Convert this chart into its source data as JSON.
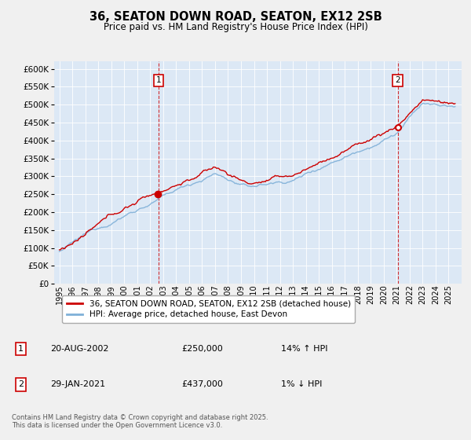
{
  "title": "36, SEATON DOWN ROAD, SEATON, EX12 2SB",
  "subtitle": "Price paid vs. HM Land Registry's House Price Index (HPI)",
  "ylim": [
    0,
    620000
  ],
  "yticks": [
    0,
    50000,
    100000,
    150000,
    200000,
    250000,
    300000,
    350000,
    400000,
    450000,
    500000,
    550000,
    600000
  ],
  "hpi_color": "#7fb0d8",
  "price_color": "#cc0000",
  "marker1_date": 2002.64,
  "marker1_price": 250000,
  "marker2_date": 2021.08,
  "marker2_price": 437000,
  "legend_line1": "36, SEATON DOWN ROAD, SEATON, EX12 2SB (detached house)",
  "legend_line2": "HPI: Average price, detached house, East Devon",
  "table_row1": [
    "1",
    "20-AUG-2002",
    "£250,000",
    "14% ↑ HPI"
  ],
  "table_row2": [
    "2",
    "29-JAN-2021",
    "£437,000",
    "1% ↓ HPI"
  ],
  "footer": "Contains HM Land Registry data © Crown copyright and database right 2025.\nThis data is licensed under the Open Government Licence v3.0.",
  "background_color": "#f0f0f0",
  "plot_background": "#dce8f5",
  "grid_color": "#ffffff"
}
